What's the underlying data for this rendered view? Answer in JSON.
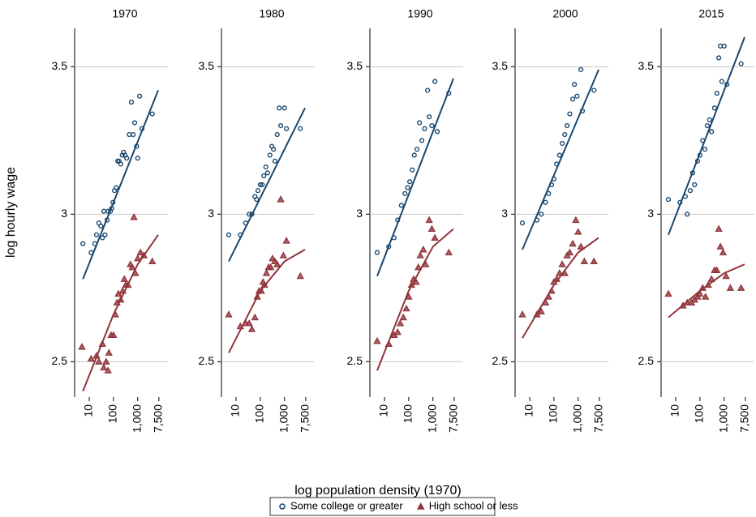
{
  "figure": {
    "y_label": "log hourly wage",
    "x_label": "log population density (1970)"
  },
  "chart_data": [
    {
      "type": "scatter",
      "title": "1970",
      "log_x": true,
      "grid": true,
      "xlim": [
        2.5,
        12000
      ],
      "ylim": [
        2.38,
        3.63
      ],
      "xticks": [
        10,
        100,
        {
          "value": 1000,
          "label": "1,000"
        },
        {
          "value": 7500,
          "label": "7,500"
        }
      ],
      "yticks": [
        2.5,
        3,
        3.5
      ],
      "series": [
        {
          "name": "Some college or greater",
          "color": "#1a476f",
          "marker": "circle",
          "x": [
            5.5,
            12,
            17,
            20,
            25,
            30,
            35,
            40,
            45,
            55,
            60,
            75,
            85,
            95,
            110,
            130,
            150,
            170,
            200,
            230,
            260,
            300,
            350,
            450,
            550,
            650,
            750,
            900,
            1000,
            1200,
            1500,
            4000
          ],
          "values": [
            2.9,
            2.87,
            2.9,
            2.93,
            2.97,
            2.96,
            2.92,
            3.01,
            2.93,
            2.98,
            3.01,
            3.01,
            3.02,
            3.04,
            3.08,
            3.09,
            3.18,
            3.18,
            3.17,
            3.2,
            3.21,
            3.2,
            3.19,
            3.27,
            3.38,
            3.27,
            3.31,
            3.23,
            3.19,
            3.4,
            3.29,
            3.34
          ]
        },
        {
          "name": "High school or less",
          "color": "#90353b",
          "marker": "triangle",
          "x": [
            5,
            12,
            20,
            25,
            35,
            40,
            50,
            60,
            65,
            80,
            100,
            120,
            140,
            160,
            200,
            240,
            280,
            320,
            400,
            500,
            600,
            700,
            800,
            1000,
            1300,
            1800,
            4000
          ],
          "values": [
            2.55,
            2.51,
            2.52,
            2.5,
            2.56,
            2.48,
            2.5,
            2.47,
            2.53,
            2.59,
            2.59,
            2.66,
            2.7,
            2.73,
            2.71,
            2.74,
            2.78,
            2.76,
            2.76,
            2.83,
            2.82,
            2.99,
            2.8,
            2.85,
            2.87,
            2.86,
            2.84
          ]
        },
        {
          "color": "#1a476f",
          "marker": "fit",
          "x": [
            5.5,
            7000
          ],
          "values": [
            2.78,
            3.42
          ]
        },
        {
          "color": "#90353b",
          "marker": "fit",
          "x": [
            5.5,
            100,
            1000,
            7000
          ],
          "values": [
            2.4,
            2.66,
            2.83,
            2.93
          ]
        }
      ]
    },
    {
      "type": "scatter",
      "title": "1980",
      "log_x": true,
      "grid": true,
      "xlim": [
        2.5,
        12000
      ],
      "ylim": [
        2.38,
        3.63
      ],
      "xticks": [
        10,
        100,
        {
          "value": 1000,
          "label": "1,000"
        },
        {
          "value": 7500,
          "label": "7,500"
        }
      ],
      "yticks": [
        2.5,
        3,
        3.5
      ],
      "series": [
        {
          "name": "Some college or greater",
          "color": "#1a476f",
          "marker": "circle",
          "x": [
            5,
            15,
            25,
            35,
            45,
            60,
            70,
            80,
            100,
            120,
            140,
            170,
            200,
            250,
            300,
            350,
            400,
            500,
            600,
            700,
            1000,
            1200,
            4500
          ],
          "values": [
            2.93,
            2.93,
            2.97,
            3.0,
            3.0,
            3.06,
            3.05,
            3.08,
            3.1,
            3.1,
            3.13,
            3.16,
            3.14,
            3.2,
            3.23,
            3.22,
            3.18,
            3.27,
            3.36,
            3.3,
            3.36,
            3.29,
            3.29
          ]
        },
        {
          "name": "High school or less",
          "color": "#90353b",
          "marker": "triangle",
          "x": [
            5,
            15,
            25,
            35,
            45,
            60,
            75,
            90,
            110,
            130,
            150,
            180,
            220,
            270,
            320,
            400,
            500,
            700,
            900,
            1200,
            4500
          ],
          "values": [
            2.66,
            2.62,
            2.63,
            2.63,
            2.61,
            2.65,
            2.72,
            2.74,
            2.74,
            2.77,
            2.76,
            2.8,
            2.82,
            2.82,
            2.85,
            2.84,
            2.83,
            3.05,
            2.86,
            2.91,
            2.79
          ]
        },
        {
          "color": "#1a476f",
          "marker": "fit",
          "x": [
            5,
            7000
          ],
          "values": [
            2.84,
            3.36
          ]
        },
        {
          "color": "#90353b",
          "marker": "fit",
          "x": [
            5,
            100,
            1000,
            7000
          ],
          "values": [
            2.53,
            2.74,
            2.84,
            2.88
          ]
        }
      ]
    },
    {
      "type": "scatter",
      "title": "1990",
      "log_x": true,
      "grid": true,
      "xlim": [
        2.5,
        12000
      ],
      "ylim": [
        2.38,
        3.63
      ],
      "xticks": [
        10,
        100,
        {
          "value": 1000,
          "label": "1,000"
        },
        {
          "value": 7500,
          "label": "7,500"
        }
      ],
      "yticks": [
        2.5,
        3,
        3.5
      ],
      "series": [
        {
          "name": "Some college or greater",
          "color": "#1a476f",
          "marker": "circle",
          "x": [
            5,
            15,
            25,
            35,
            50,
            70,
            90,
            110,
            140,
            170,
            220,
            280,
            350,
            450,
            600,
            700,
            900,
            1200,
            1500,
            4500
          ],
          "values": [
            2.87,
            2.89,
            2.92,
            2.98,
            3.03,
            3.07,
            3.09,
            3.11,
            3.15,
            3.2,
            3.22,
            3.31,
            3.25,
            3.29,
            3.42,
            3.33,
            3.3,
            3.45,
            3.28,
            3.41
          ]
        },
        {
          "name": "High school or less",
          "color": "#90353b",
          "marker": "triangle",
          "x": [
            5,
            15,
            25,
            35,
            45,
            60,
            80,
            100,
            130,
            160,
            200,
            250,
            300,
            400,
            500,
            700,
            900,
            1200,
            4500
          ],
          "values": [
            2.57,
            2.56,
            2.59,
            2.6,
            2.63,
            2.65,
            2.68,
            2.72,
            2.76,
            2.78,
            2.77,
            2.82,
            2.86,
            2.88,
            2.83,
            2.98,
            2.95,
            2.92,
            2.87
          ]
        },
        {
          "color": "#1a476f",
          "marker": "fit",
          "x": [
            5,
            7000
          ],
          "values": [
            2.79,
            3.46
          ]
        },
        {
          "color": "#90353b",
          "marker": "fit",
          "x": [
            5,
            100,
            1000,
            7000
          ],
          "values": [
            2.47,
            2.74,
            2.89,
            2.95
          ]
        }
      ]
    },
    {
      "type": "scatter",
      "title": "2000",
      "log_x": true,
      "grid": true,
      "xlim": [
        2.5,
        12000
      ],
      "ylim": [
        2.38,
        3.63
      ],
      "xticks": [
        10,
        100,
        {
          "value": 1000,
          "label": "1,000"
        },
        {
          "value": 7500,
          "label": "7,500"
        }
      ],
      "yticks": [
        2.5,
        3,
        3.5
      ],
      "series": [
        {
          "name": "Some college or greater",
          "color": "#1a476f",
          "marker": "circle",
          "x": [
            5,
            20,
            30,
            45,
            60,
            80,
            100,
            130,
            170,
            220,
            280,
            350,
            450,
            600,
            700,
            900,
            1300,
            1500,
            4500
          ],
          "values": [
            2.97,
            2.98,
            3.0,
            3.04,
            3.07,
            3.1,
            3.12,
            3.17,
            3.2,
            3.24,
            3.27,
            3.3,
            3.34,
            3.39,
            3.44,
            3.4,
            3.49,
            3.35,
            3.42
          ]
        },
        {
          "name": "High school or less",
          "color": "#90353b",
          "marker": "triangle",
          "x": [
            5,
            20,
            30,
            45,
            60,
            80,
            100,
            130,
            170,
            220,
            280,
            350,
            450,
            600,
            800,
            1000,
            1300,
            1800,
            4500
          ],
          "values": [
            2.66,
            2.66,
            2.67,
            2.7,
            2.72,
            2.74,
            2.77,
            2.78,
            2.8,
            2.83,
            2.8,
            2.86,
            2.87,
            2.9,
            2.98,
            2.94,
            2.89,
            2.84,
            2.84
          ]
        },
        {
          "color": "#1a476f",
          "marker": "fit",
          "x": [
            5,
            7000
          ],
          "values": [
            2.88,
            3.49
          ]
        },
        {
          "color": "#90353b",
          "marker": "fit",
          "x": [
            5,
            100,
            1000,
            7000
          ],
          "values": [
            2.58,
            2.76,
            2.87,
            2.92
          ]
        }
      ]
    },
    {
      "type": "scatter",
      "title": "2015",
      "log_x": true,
      "grid": true,
      "xlim": [
        2.5,
        12000
      ],
      "ylim": [
        2.38,
        3.63
      ],
      "xticks": [
        10,
        100,
        {
          "value": 1000,
          "label": "1,000"
        },
        {
          "value": 7500,
          "label": "7,500"
        }
      ],
      "yticks": [
        2.5,
        3,
        3.5
      ],
      "series": [
        {
          "name": "Some college or greater",
          "color": "#1a476f",
          "marker": "circle",
          "x": [
            5,
            15,
            25,
            30,
            40,
            50,
            60,
            80,
            100,
            130,
            160,
            200,
            250,
            300,
            400,
            500,
            600,
            700,
            800,
            1000,
            1300,
            5000
          ],
          "values": [
            3.05,
            3.04,
            3.06,
            3.0,
            3.08,
            3.14,
            3.1,
            3.18,
            3.2,
            3.25,
            3.22,
            3.3,
            3.32,
            3.28,
            3.36,
            3.41,
            3.53,
            3.57,
            3.45,
            3.57,
            3.44,
            3.51
          ]
        },
        {
          "name": "High school or less",
          "color": "#90353b",
          "marker": "triangle",
          "x": [
            5,
            20,
            30,
            45,
            60,
            80,
            100,
            130,
            170,
            220,
            300,
            400,
            500,
            600,
            700,
            900,
            1200,
            1800,
            5000
          ],
          "values": [
            2.73,
            2.69,
            2.7,
            2.7,
            2.71,
            2.72,
            2.73,
            2.75,
            2.72,
            2.76,
            2.78,
            2.81,
            2.81,
            2.95,
            2.89,
            2.87,
            2.79,
            2.75,
            2.75
          ]
        },
        {
          "color": "#1a476f",
          "marker": "fit",
          "x": [
            5,
            7000
          ],
          "values": [
            2.93,
            3.6
          ]
        },
        {
          "color": "#90353b",
          "marker": "fit",
          "x": [
            5,
            100,
            1000,
            7000
          ],
          "values": [
            2.65,
            2.74,
            2.8,
            2.83
          ]
        }
      ]
    }
  ]
}
